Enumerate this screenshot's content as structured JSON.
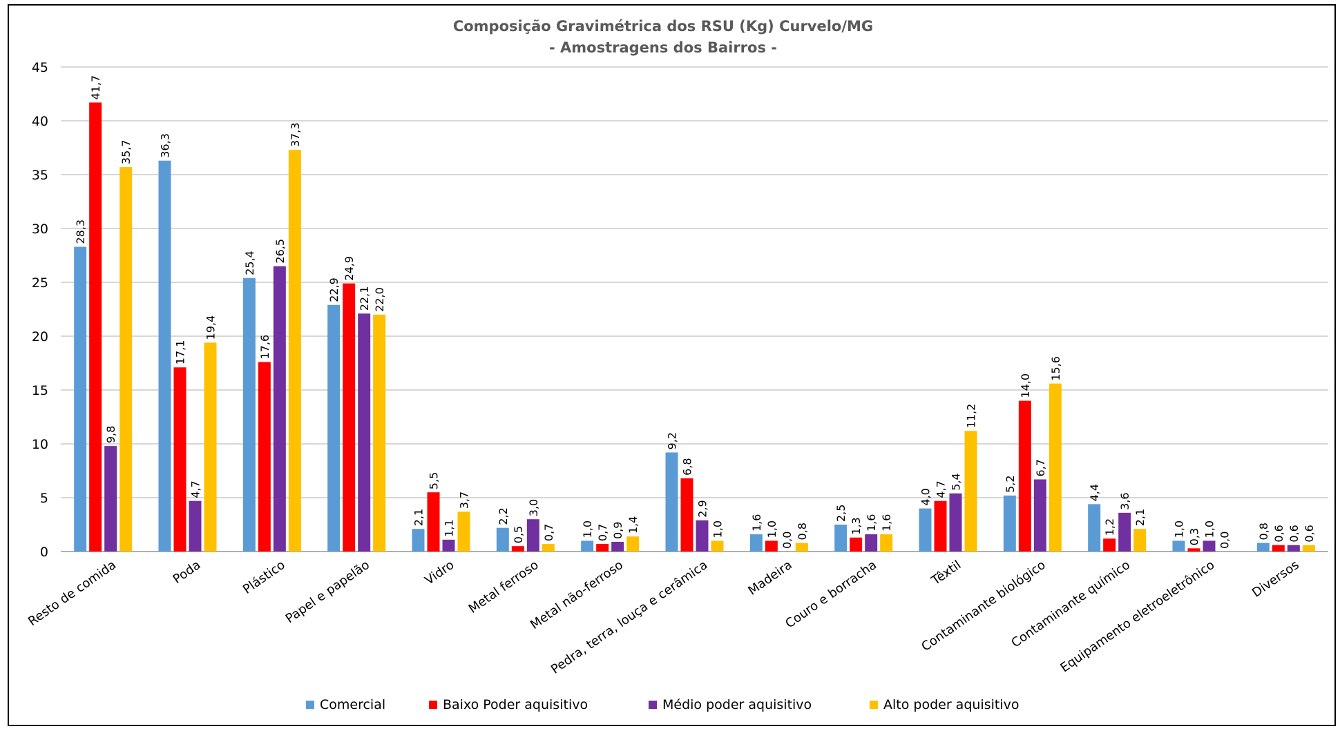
{
  "chart_data": {
    "type": "bar",
    "title": "Composição Gravimétrica dos RSU (Kg) Curvelo/MG",
    "subtitle": "-  Amostragens dos Bairros  -",
    "xlabel": "",
    "ylabel": "",
    "ylim": [
      0,
      45
    ],
    "yticks": [
      "0",
      "5",
      "10",
      "15",
      "20",
      "25",
      "30",
      "35",
      "40",
      "45"
    ],
    "grid": true,
    "legend_position": "bottom",
    "categories": [
      "Resto de comida",
      "Poda",
      "Plástico",
      "Papel e papelão",
      "Vidro",
      "Metal ferroso",
      "Metal não-ferroso",
      "Pedra, terra, louça e cerâmica",
      "Madeira",
      "Couro e borracha",
      "Têxtil",
      "Contaminante biológico",
      "Contaminante químico",
      "Equipamento eletroeletrônico",
      "Diversos"
    ],
    "series": [
      {
        "name": "Comercial",
        "color": "#5B9BD5",
        "values": [
          28.3,
          36.3,
          25.4,
          22.9,
          2.1,
          2.2,
          1.0,
          9.2,
          1.6,
          2.5,
          4.0,
          5.2,
          4.4,
          1.0,
          0.8
        ],
        "labels": [
          "28,3",
          "36,3",
          "25,4",
          "22,9",
          "2,1",
          "2,2",
          "1,0",
          "9,2",
          "1,6",
          "2,5",
          "4,0",
          "5,2",
          "4,4",
          "1,0",
          "0,8"
        ]
      },
      {
        "name": "Baixo Poder aquisitivo",
        "color": "#FF0000",
        "values": [
          41.7,
          17.1,
          17.6,
          24.9,
          5.5,
          0.5,
          0.7,
          6.8,
          1.0,
          1.3,
          4.7,
          14.0,
          1.2,
          0.3,
          0.6
        ],
        "labels": [
          "41,7",
          "17,1",
          "17,6",
          "24,9",
          "5,5",
          "0,5",
          "0,7",
          "6,8",
          "1,0",
          "1,3",
          "4,7",
          "14,0",
          "1,2",
          "0,3",
          "0,6"
        ]
      },
      {
        "name": "Médio poder aquisitivo",
        "color": "#7030A0",
        "values": [
          9.8,
          4.7,
          26.5,
          22.1,
          1.1,
          3.0,
          0.9,
          2.9,
          0.0,
          1.6,
          5.4,
          6.7,
          3.6,
          1.0,
          0.6
        ],
        "labels": [
          "9,8",
          "4,7",
          "26,5",
          "22,1",
          "1,1",
          "3,0",
          "0,9",
          "2,9",
          "0,0",
          "1,6",
          "5,4",
          "6,7",
          "3,6",
          "1,0",
          "0,6"
        ]
      },
      {
        "name": "Alto poder aquisitivo",
        "color": "#FFC000",
        "values": [
          35.7,
          19.4,
          37.3,
          22.0,
          3.7,
          0.7,
          1.4,
          1.0,
          0.8,
          1.6,
          11.2,
          15.6,
          2.1,
          0.0,
          0.6
        ],
        "labels": [
          "35,7",
          "19,4",
          "37,3",
          "22,0",
          "3,7",
          "0,7",
          "1,4",
          "1,0",
          "0,8",
          "1,6",
          "11,2",
          "15,6",
          "2,1",
          "0,0",
          "0,6"
        ]
      }
    ]
  }
}
